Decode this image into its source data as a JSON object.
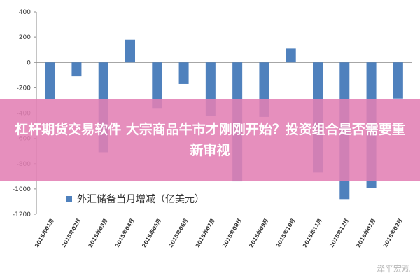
{
  "chart_data": {
    "type": "bar",
    "categories": [
      "2015年01月",
      "2015年02月",
      "2015年03月",
      "2015年04月",
      "2015年05月",
      "2015年06月",
      "2015年07月",
      "2015年08月",
      "2015年09月",
      "2015年10月",
      "2015年11月",
      "2015年12月",
      "2016年01月",
      "2016年02月"
    ],
    "series": [
      {
        "name": "外汇储备当月增减（亿美元）",
        "values": [
          -290,
          -110,
          -710,
          180,
          -360,
          -170,
          -420,
          -940,
          -430,
          110,
          -870,
          -1080,
          -990,
          -285
        ]
      }
    ],
    "yticks": [
      400,
      200,
      0,
      -200,
      -400,
      -600,
      -800,
      -1000,
      -1200
    ],
    "ylim": [
      -1200,
      400
    ],
    "grid": false,
    "legend_position": "bottom-left",
    "bar_color": "#4f81bd"
  },
  "overlay": {
    "headline": "杠杆期货交易软件 大宗商品牛市才刚刚开始？投资组合是否需要重新审视",
    "background_color": "#e280b4"
  },
  "watermark": {
    "text": "泽平宏观"
  }
}
